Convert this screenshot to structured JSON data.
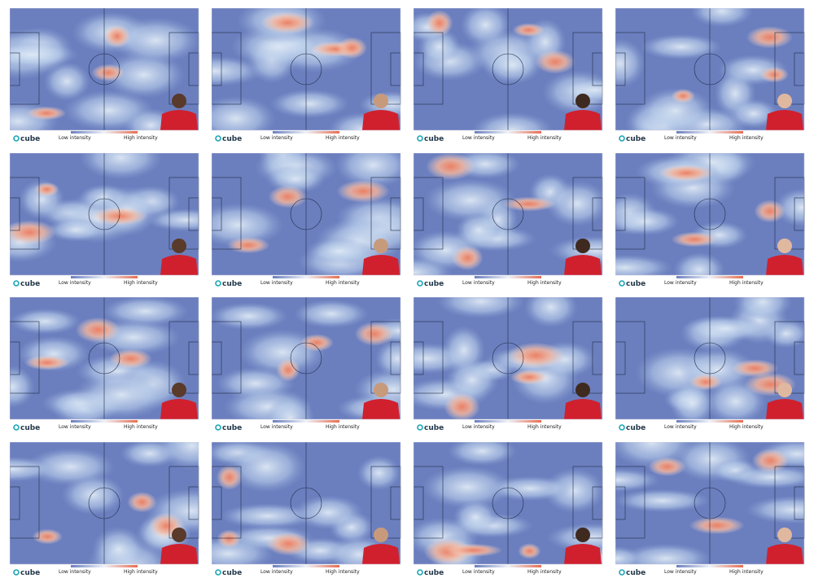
{
  "panels": [
    {
      "brand": "cube",
      "low_label": "Low intensity",
      "high_label": "High intensity"
    },
    {
      "brand": "cube",
      "low_label": "Low intensity",
      "high_label": "High intensity"
    },
    {
      "brand": "cube",
      "low_label": "Low intensity",
      "high_label": "High intensity"
    },
    {
      "brand": "cube",
      "low_label": "Low intensity",
      "high_label": "High intensity"
    },
    {
      "brand": "cube",
      "low_label": "Low intensity",
      "high_label": "High intensity"
    },
    {
      "brand": "cube",
      "low_label": "Low intensity",
      "high_label": "High intensity"
    },
    {
      "brand": "cube",
      "low_label": "Low intensity",
      "high_label": "High intensity"
    },
    {
      "brand": "cube",
      "low_label": "Low intensity",
      "high_label": "High intensity"
    },
    {
      "brand": "cube",
      "low_label": "Low intensity",
      "high_label": "High intensity"
    },
    {
      "brand": "cube",
      "low_label": "Low intensity",
      "high_label": "High intensity"
    },
    {
      "brand": "cube",
      "low_label": "Low intensity",
      "high_label": "High intensity"
    },
    {
      "brand": "cube",
      "low_label": "Low intensity",
      "high_label": "High intensity"
    },
    {
      "brand": "cube",
      "low_label": "Low intensity",
      "high_label": "High intensity"
    },
    {
      "brand": "cube",
      "low_label": "Low intensity",
      "high_label": "High intensity"
    },
    {
      "brand": "cube",
      "low_label": "Low intensity",
      "high_label": "High intensity"
    },
    {
      "brand": "cube",
      "low_label": "Low intensity",
      "high_label": "High intensity"
    }
  ]
}
